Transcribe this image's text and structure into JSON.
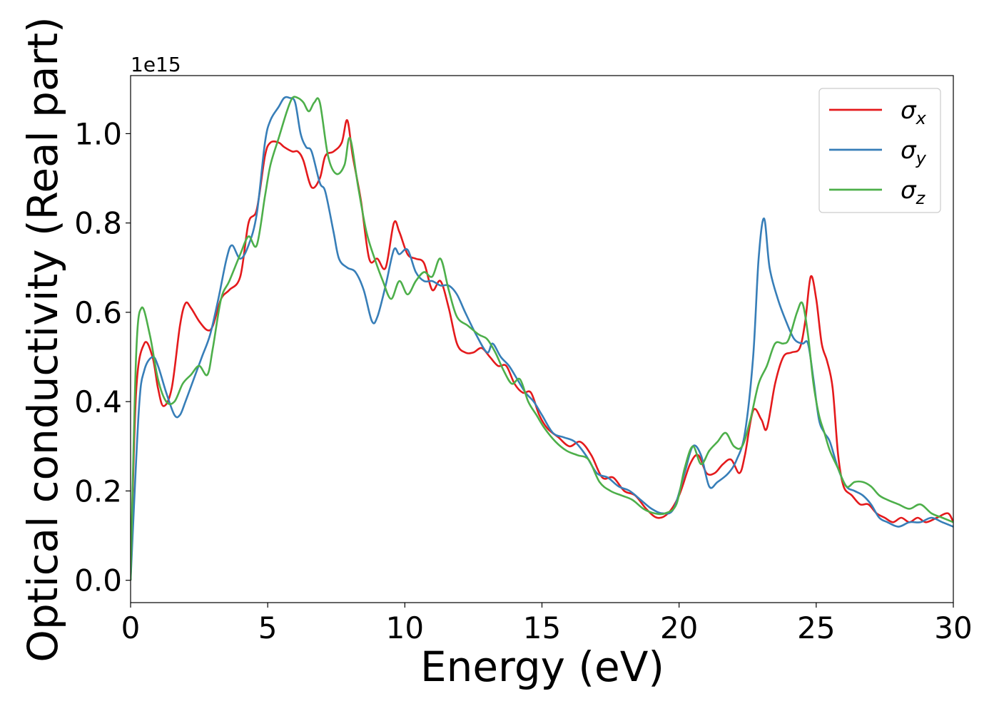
{
  "chart_data": {
    "type": "line",
    "title": "",
    "xlabel": "Energy (eV)",
    "ylabel": "Optical conductivity (Real part)",
    "y_offset_label": "1e15",
    "xlim": [
      0,
      30
    ],
    "ylim": [
      -0.05,
      1.13
    ],
    "x_ticks": [
      0,
      5,
      10,
      15,
      20,
      25,
      30
    ],
    "y_ticks": [
      0.0,
      0.2,
      0.4,
      0.6,
      0.8,
      1.0
    ],
    "x_tick_labels": [
      "0",
      "5",
      "10",
      "15",
      "20",
      "25",
      "30"
    ],
    "y_tick_labels": [
      "0.0",
      "0.2",
      "0.4",
      "0.6",
      "0.8",
      "1.0"
    ],
    "grid": false,
    "legend_position": "top-right",
    "series": [
      {
        "name": "σx",
        "legend_base": "σ",
        "legend_sub": "x",
        "color": "#e41a1c",
        "x": [
          0,
          0.2,
          0.5,
          0.8,
          1.0,
          1.2,
          1.5,
          1.8,
          2.0,
          2.2,
          2.5,
          2.8,
          3.0,
          3.3,
          3.6,
          4.0,
          4.3,
          4.6,
          4.9,
          5.1,
          5.4,
          5.6,
          5.9,
          6.1,
          6.3,
          6.6,
          6.9,
          7.1,
          7.4,
          7.7,
          7.9,
          8.1,
          8.4,
          8.7,
          9.0,
          9.3,
          9.6,
          9.8,
          10.1,
          10.4,
          10.7,
          11.0,
          11.3,
          11.6,
          11.9,
          12.2,
          12.5,
          12.8,
          13.1,
          13.4,
          13.7,
          14.0,
          14.3,
          14.6,
          14.9,
          15.2,
          15.6,
          16.0,
          16.4,
          16.8,
          17.2,
          17.6,
          18.0,
          18.4,
          18.8,
          19.2,
          19.6,
          20.0,
          20.4,
          20.7,
          21.0,
          21.3,
          21.6,
          21.9,
          22.2,
          22.4,
          22.7,
          23.0,
          23.2,
          23.5,
          23.8,
          24.1,
          24.4,
          24.6,
          24.8,
          25.0,
          25.2,
          25.4,
          25.6,
          25.8,
          26.0,
          26.3,
          26.6,
          26.9,
          27.2,
          27.5,
          27.8,
          28.1,
          28.4,
          28.7,
          29.0,
          29.4,
          29.8,
          30.0
        ],
        "values": [
          0.0,
          0.42,
          0.53,
          0.5,
          0.43,
          0.39,
          0.43,
          0.57,
          0.62,
          0.61,
          0.58,
          0.56,
          0.57,
          0.63,
          0.65,
          0.68,
          0.8,
          0.83,
          0.95,
          0.98,
          0.98,
          0.97,
          0.96,
          0.96,
          0.94,
          0.88,
          0.9,
          0.95,
          0.96,
          0.98,
          1.03,
          0.95,
          0.85,
          0.72,
          0.72,
          0.7,
          0.8,
          0.78,
          0.73,
          0.72,
          0.71,
          0.65,
          0.67,
          0.61,
          0.53,
          0.51,
          0.51,
          0.52,
          0.5,
          0.48,
          0.48,
          0.44,
          0.42,
          0.42,
          0.37,
          0.34,
          0.32,
          0.3,
          0.31,
          0.28,
          0.23,
          0.23,
          0.2,
          0.19,
          0.16,
          0.14,
          0.15,
          0.19,
          0.26,
          0.28,
          0.24,
          0.24,
          0.26,
          0.27,
          0.24,
          0.28,
          0.38,
          0.36,
          0.34,
          0.44,
          0.5,
          0.51,
          0.52,
          0.58,
          0.68,
          0.63,
          0.53,
          0.49,
          0.43,
          0.28,
          0.21,
          0.19,
          0.17,
          0.17,
          0.15,
          0.14,
          0.13,
          0.14,
          0.13,
          0.14,
          0.13,
          0.14,
          0.15,
          0.13
        ]
      },
      {
        "name": "σy",
        "legend_base": "σ",
        "legend_sub": "y",
        "color": "#377eb8",
        "x": [
          0,
          0.3,
          0.5,
          0.8,
          1.0,
          1.3,
          1.6,
          1.8,
          2.0,
          2.3,
          2.6,
          2.9,
          3.2,
          3.5,
          3.7,
          4.0,
          4.3,
          4.6,
          4.9,
          5.1,
          5.4,
          5.6,
          5.8,
          6.0,
          6.2,
          6.4,
          6.6,
          6.9,
          7.1,
          7.4,
          7.6,
          7.9,
          8.2,
          8.5,
          8.8,
          9.0,
          9.3,
          9.6,
          9.8,
          10.1,
          10.4,
          10.7,
          11.0,
          11.3,
          11.6,
          11.9,
          12.2,
          12.6,
          13.0,
          13.2,
          13.5,
          13.8,
          14.1,
          14.4,
          14.7,
          15.0,
          15.4,
          15.8,
          16.2,
          16.6,
          17.0,
          17.4,
          17.8,
          18.2,
          18.6,
          19.0,
          19.4,
          19.8,
          20.2,
          20.5,
          20.8,
          21.1,
          21.4,
          21.8,
          22.1,
          22.4,
          22.7,
          22.9,
          23.1,
          23.3,
          23.6,
          23.9,
          24.2,
          24.5,
          24.7,
          24.9,
          25.1,
          25.3,
          25.5,
          25.8,
          26.1,
          26.4,
          26.7,
          27.0,
          27.3,
          27.6,
          28.0,
          28.4,
          28.8,
          29.2,
          29.6,
          30.0
        ],
        "values": [
          0.0,
          0.38,
          0.47,
          0.5,
          0.48,
          0.42,
          0.37,
          0.37,
          0.4,
          0.45,
          0.5,
          0.55,
          0.63,
          0.72,
          0.75,
          0.72,
          0.75,
          0.82,
          0.98,
          1.03,
          1.06,
          1.08,
          1.08,
          1.07,
          1.0,
          0.97,
          0.96,
          0.89,
          0.87,
          0.78,
          0.72,
          0.7,
          0.69,
          0.65,
          0.58,
          0.59,
          0.66,
          0.74,
          0.73,
          0.74,
          0.69,
          0.67,
          0.67,
          0.66,
          0.66,
          0.64,
          0.6,
          0.55,
          0.51,
          0.53,
          0.5,
          0.48,
          0.45,
          0.42,
          0.4,
          0.37,
          0.33,
          0.32,
          0.31,
          0.28,
          0.24,
          0.23,
          0.21,
          0.2,
          0.18,
          0.16,
          0.15,
          0.16,
          0.24,
          0.3,
          0.28,
          0.21,
          0.22,
          0.24,
          0.27,
          0.33,
          0.5,
          0.72,
          0.81,
          0.7,
          0.63,
          0.58,
          0.54,
          0.53,
          0.53,
          0.45,
          0.36,
          0.33,
          0.31,
          0.25,
          0.21,
          0.2,
          0.19,
          0.17,
          0.14,
          0.13,
          0.12,
          0.13,
          0.13,
          0.14,
          0.13,
          0.12
        ]
      },
      {
        "name": "σz",
        "legend_base": "σ",
        "legend_sub": "z",
        "color": "#4daf4a",
        "x": [
          0,
          0.2,
          0.4,
          0.7,
          1.0,
          1.3,
          1.6,
          1.9,
          2.2,
          2.5,
          2.8,
          3.0,
          3.3,
          3.6,
          4.0,
          4.3,
          4.6,
          4.9,
          5.1,
          5.4,
          5.7,
          5.9,
          6.1,
          6.3,
          6.5,
          6.7,
          6.9,
          7.2,
          7.5,
          7.8,
          8.0,
          8.3,
          8.6,
          8.9,
          9.2,
          9.5,
          9.8,
          10.1,
          10.4,
          10.7,
          11.0,
          11.3,
          11.6,
          11.9,
          12.3,
          12.7,
          13.0,
          13.3,
          13.6,
          13.9,
          14.2,
          14.5,
          14.8,
          15.1,
          15.5,
          15.9,
          16.3,
          16.7,
          17.1,
          17.5,
          17.9,
          18.3,
          18.7,
          19.1,
          19.5,
          19.9,
          20.2,
          20.5,
          20.8,
          21.1,
          21.4,
          21.7,
          22.0,
          22.3,
          22.6,
          22.9,
          23.2,
          23.5,
          23.8,
          24.0,
          24.3,
          24.5,
          24.7,
          24.9,
          25.1,
          25.3,
          25.5,
          25.8,
          26.1,
          26.4,
          26.7,
          27.0,
          27.3,
          27.6,
          28.0,
          28.4,
          28.8,
          29.2,
          29.6,
          30.0
        ],
        "values": [
          0.0,
          0.5,
          0.61,
          0.55,
          0.45,
          0.4,
          0.4,
          0.44,
          0.46,
          0.48,
          0.46,
          0.52,
          0.63,
          0.67,
          0.73,
          0.77,
          0.75,
          0.86,
          0.93,
          0.99,
          1.05,
          1.08,
          1.08,
          1.07,
          1.05,
          1.07,
          1.07,
          0.95,
          0.91,
          0.93,
          0.99,
          0.88,
          0.78,
          0.72,
          0.67,
          0.63,
          0.67,
          0.64,
          0.67,
          0.69,
          0.68,
          0.72,
          0.65,
          0.59,
          0.57,
          0.55,
          0.54,
          0.51,
          0.47,
          0.44,
          0.45,
          0.4,
          0.37,
          0.34,
          0.31,
          0.29,
          0.28,
          0.27,
          0.22,
          0.2,
          0.19,
          0.18,
          0.16,
          0.15,
          0.15,
          0.17,
          0.25,
          0.3,
          0.26,
          0.29,
          0.31,
          0.33,
          0.3,
          0.3,
          0.36,
          0.44,
          0.48,
          0.53,
          0.53,
          0.54,
          0.6,
          0.62,
          0.55,
          0.44,
          0.37,
          0.33,
          0.29,
          0.25,
          0.21,
          0.22,
          0.22,
          0.21,
          0.19,
          0.18,
          0.17,
          0.16,
          0.17,
          0.15,
          0.14,
          0.13
        ]
      }
    ]
  }
}
